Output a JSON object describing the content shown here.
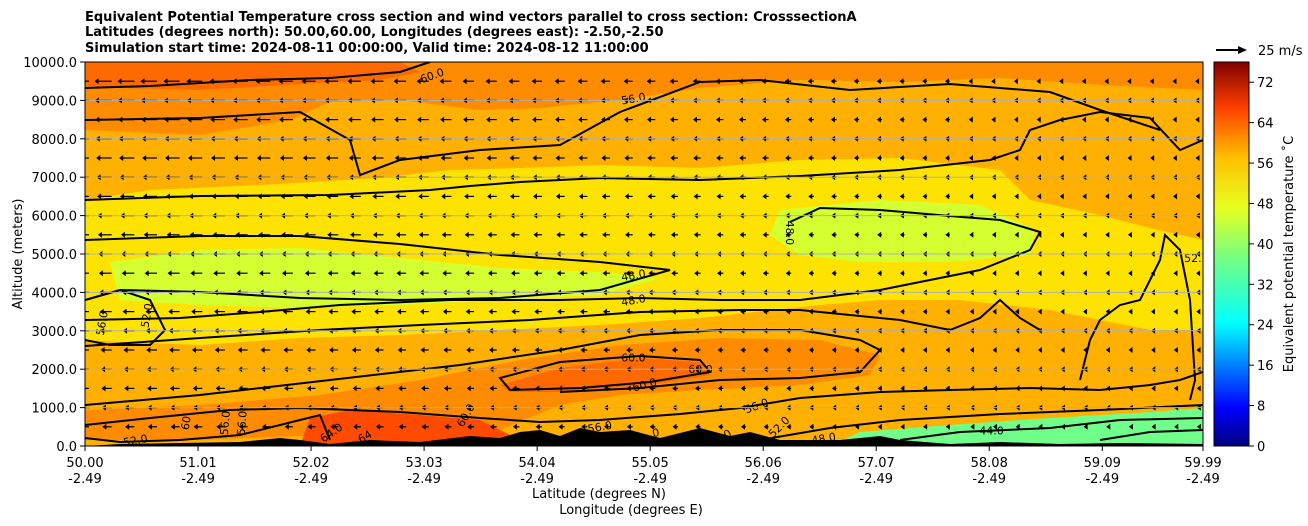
{
  "chart_data": {
    "type": "contour",
    "title_lines": [
      "Equivalent Potential Temperature cross section and wind vectors parallel to cross section: CrosssectionA",
      "Latitudes (degrees north): 50.00,60.00, Longitudes (degrees east): -2.50,-2.50",
      "Simulation start time: 2024-08-11 00:00:00, Valid time: 2024-08-12 11:00:00"
    ],
    "ylabel": "Altitude (meters)",
    "xlabel": "Latitude (degrees N)",
    "xlabel2": "Longitude (degrees E)",
    "colorbar_label": "Equivalent potential temperature ˚C",
    "quiver_key_label": "25 m/s",
    "ylim": [
      0,
      10000
    ],
    "yticks": [
      "0.0",
      "1000.0",
      "2000.0",
      "3000.0",
      "4000.0",
      "5000.0",
      "6000.0",
      "7000.0",
      "8000.0",
      "9000.0",
      "10000.0"
    ],
    "xticks_lat": [
      "50.00",
      "51.01",
      "52.02",
      "53.03",
      "54.04",
      "55.05",
      "56.06",
      "57.07",
      "58.08",
      "59.09",
      "59.99"
    ],
    "xticks_lon": [
      "-2.49",
      "-2.49",
      "-2.49",
      "-2.49",
      "-2.49",
      "-2.49",
      "-2.49",
      "-2.49",
      "-2.49",
      "-2.49",
      "-2.49"
    ],
    "colorbar_ticks": [
      "0",
      "8",
      "16",
      "24",
      "32",
      "40",
      "48",
      "56",
      "64",
      "72"
    ],
    "colorbar_range": [
      0,
      76
    ],
    "grid": "horizontal",
    "contour_labels": [
      {
        "text": "60.0",
        "lat": 53.1,
        "alt": 9650,
        "angle": -20
      },
      {
        "text": "56.0",
        "lat": 54.9,
        "alt": 9050,
        "angle": -10
      },
      {
        "text": "48.0",
        "lat": 56.3,
        "alt": 5550,
        "angle": 90
      },
      {
        "text": "52.",
        "lat": 59.9,
        "alt": 4900,
        "angle": 0
      },
      {
        "text": "48.0",
        "lat": 54.9,
        "alt": 4450,
        "angle": -10
      },
      {
        "text": "48.0",
        "lat": 54.9,
        "alt": 3800,
        "angle": -10
      },
      {
        "text": "56.0",
        "lat": 50.15,
        "alt": 3200,
        "angle": -80
      },
      {
        "text": "52.0",
        "lat": 50.55,
        "alt": 3400,
        "angle": -80
      },
      {
        "text": "60.0",
        "lat": 54.9,
        "alt": 2300,
        "angle": 0
      },
      {
        "text": "60.0",
        "lat": 55.5,
        "alt": 2000,
        "angle": 0
      },
      {
        "text": "60.0",
        "lat": 55.0,
        "alt": 1600,
        "angle": -15
      },
      {
        "text": "56.0",
        "lat": 56.0,
        "alt": 1050,
        "angle": -20
      },
      {
        "text": "60.0",
        "lat": 53.4,
        "alt": 800,
        "angle": -60
      },
      {
        "text": "56.0",
        "lat": 51.25,
        "alt": 600,
        "angle": -85
      },
      {
        "text": "56.0",
        "lat": 51.4,
        "alt": 600,
        "angle": -85
      },
      {
        "text": "60",
        "lat": 50.9,
        "alt": 600,
        "angle": -80
      },
      {
        "text": "64.0",
        "lat": 52.2,
        "alt": 350,
        "angle": -35
      },
      {
        "text": "64",
        "lat": 52.5,
        "alt": 250,
        "angle": -30
      },
      {
        "text": "52.0",
        "lat": 50.45,
        "alt": 150,
        "angle": -10
      },
      {
        "text": "56.0",
        "lat": 54.6,
        "alt": 500,
        "angle": -10
      },
      {
        "text": "52.0",
        "lat": 56.2,
        "alt": 500,
        "angle": -45
      },
      {
        "text": "48.0",
        "lat": 56.6,
        "alt": 200,
        "angle": -10
      },
      {
        "text": "44.0",
        "lat": 58.1,
        "alt": 400,
        "angle": 0
      },
      {
        "text": "0",
        "lat": 55.1,
        "alt": 350,
        "angle": -10
      },
      {
        "text": "2.0",
        "lat": 55.7,
        "alt": 250,
        "angle": -30
      }
    ]
  },
  "colors": {
    "dark_red": "#7f0000",
    "red_orange": "#ff4a00",
    "orange": "#ff8c00",
    "amber": "#ffb000",
    "yellow": "#ffe300",
    "yellow_green": "#c8ff30",
    "green": "#70ff8a",
    "terrain": "#000000"
  }
}
